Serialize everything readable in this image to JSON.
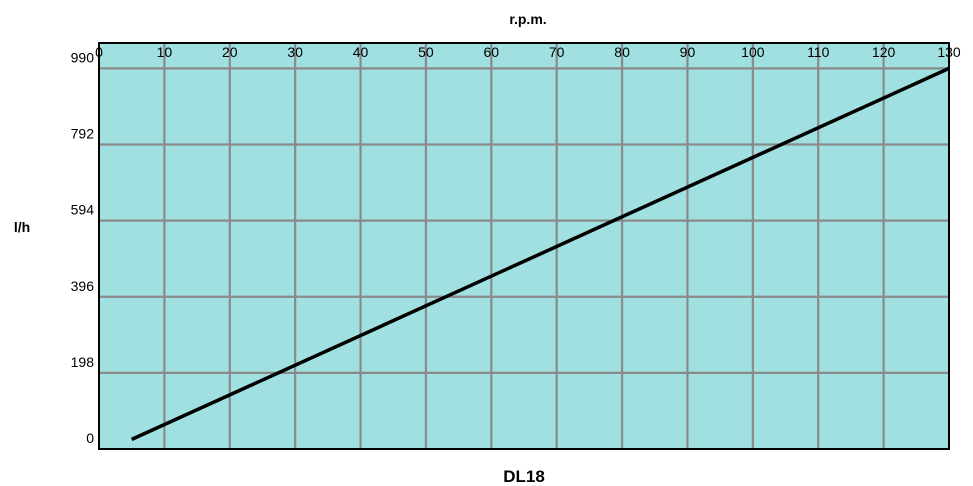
{
  "chart_data": {
    "type": "line",
    "title": "DL18",
    "xlabel": "r.p.m.",
    "ylabel": "l/h",
    "xlim": [
      0,
      130
    ],
    "ylim": [
      0,
      1056
    ],
    "x_ticks": [
      0,
      10,
      20,
      30,
      40,
      50,
      60,
      70,
      80,
      90,
      100,
      110,
      120,
      130
    ],
    "y_ticks": [
      0,
      198,
      396,
      594,
      792,
      990
    ],
    "grid": true,
    "x_axis_position": "top",
    "series": [
      {
        "x": [
          5,
          130
        ],
        "y": [
          25,
          990
        ]
      }
    ],
    "colors": {
      "plot_background": "#a0e0e0",
      "grid": "#8a8a8a",
      "line": "#000000",
      "frame": "#000000"
    }
  }
}
